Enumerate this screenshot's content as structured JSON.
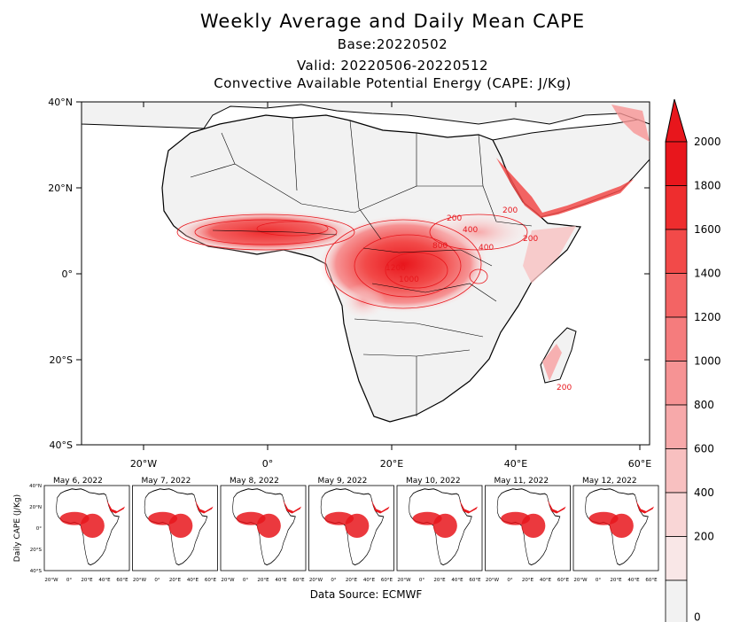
{
  "title": "Weekly Average and Daily Mean CAPE",
  "base": "Base:20220502",
  "valid": "Valid: 20220506-20220512",
  "subtitle": "Convective Available Potential Energy (CAPE: J/Kg)",
  "map": {
    "lat_labels": [
      "40°N",
      "20°N",
      "0°",
      "20°S",
      "40°S"
    ],
    "lon_labels": [
      "20°W",
      "0°",
      "20°E",
      "40°E",
      "60°E"
    ],
    "contour_labels": [
      "200",
      "200",
      "200",
      "400",
      "800",
      "1000",
      "1200",
      "200",
      "400"
    ]
  },
  "colorbar": {
    "levels": [
      "2000",
      "1800",
      "1600",
      "1400",
      "1200",
      "1000",
      "800",
      "600",
      "400",
      "200",
      "0"
    ],
    "colors": [
      "#e8161c",
      "#ee2d2e",
      "#f24a49",
      "#f36464",
      "#f57c7d",
      "#f69394",
      "#f7a9aa",
      "#f8c0c0",
      "#f9d6d6",
      "#f9e7e7",
      "#f2f2f2"
    ]
  },
  "daily_panels": {
    "ylabel": "Daily CAPE (J/Kg)",
    "lat_labels": [
      "40°N",
      "20°N",
      "0°",
      "20°S",
      "40°S"
    ],
    "lon_labels": [
      "20°W",
      "0°",
      "20°E",
      "40°E",
      "60°E"
    ],
    "days": [
      "May 6, 2022",
      "May 7, 2022",
      "May 8, 2022",
      "May 9, 2022",
      "May 10, 2022",
      "May 11, 2022",
      "May 12, 2022"
    ]
  },
  "source": "Data Source: ECMWF",
  "colors": {
    "land": "#f2f2f2",
    "coast": "#000000",
    "cape_high": "#e8161c"
  }
}
